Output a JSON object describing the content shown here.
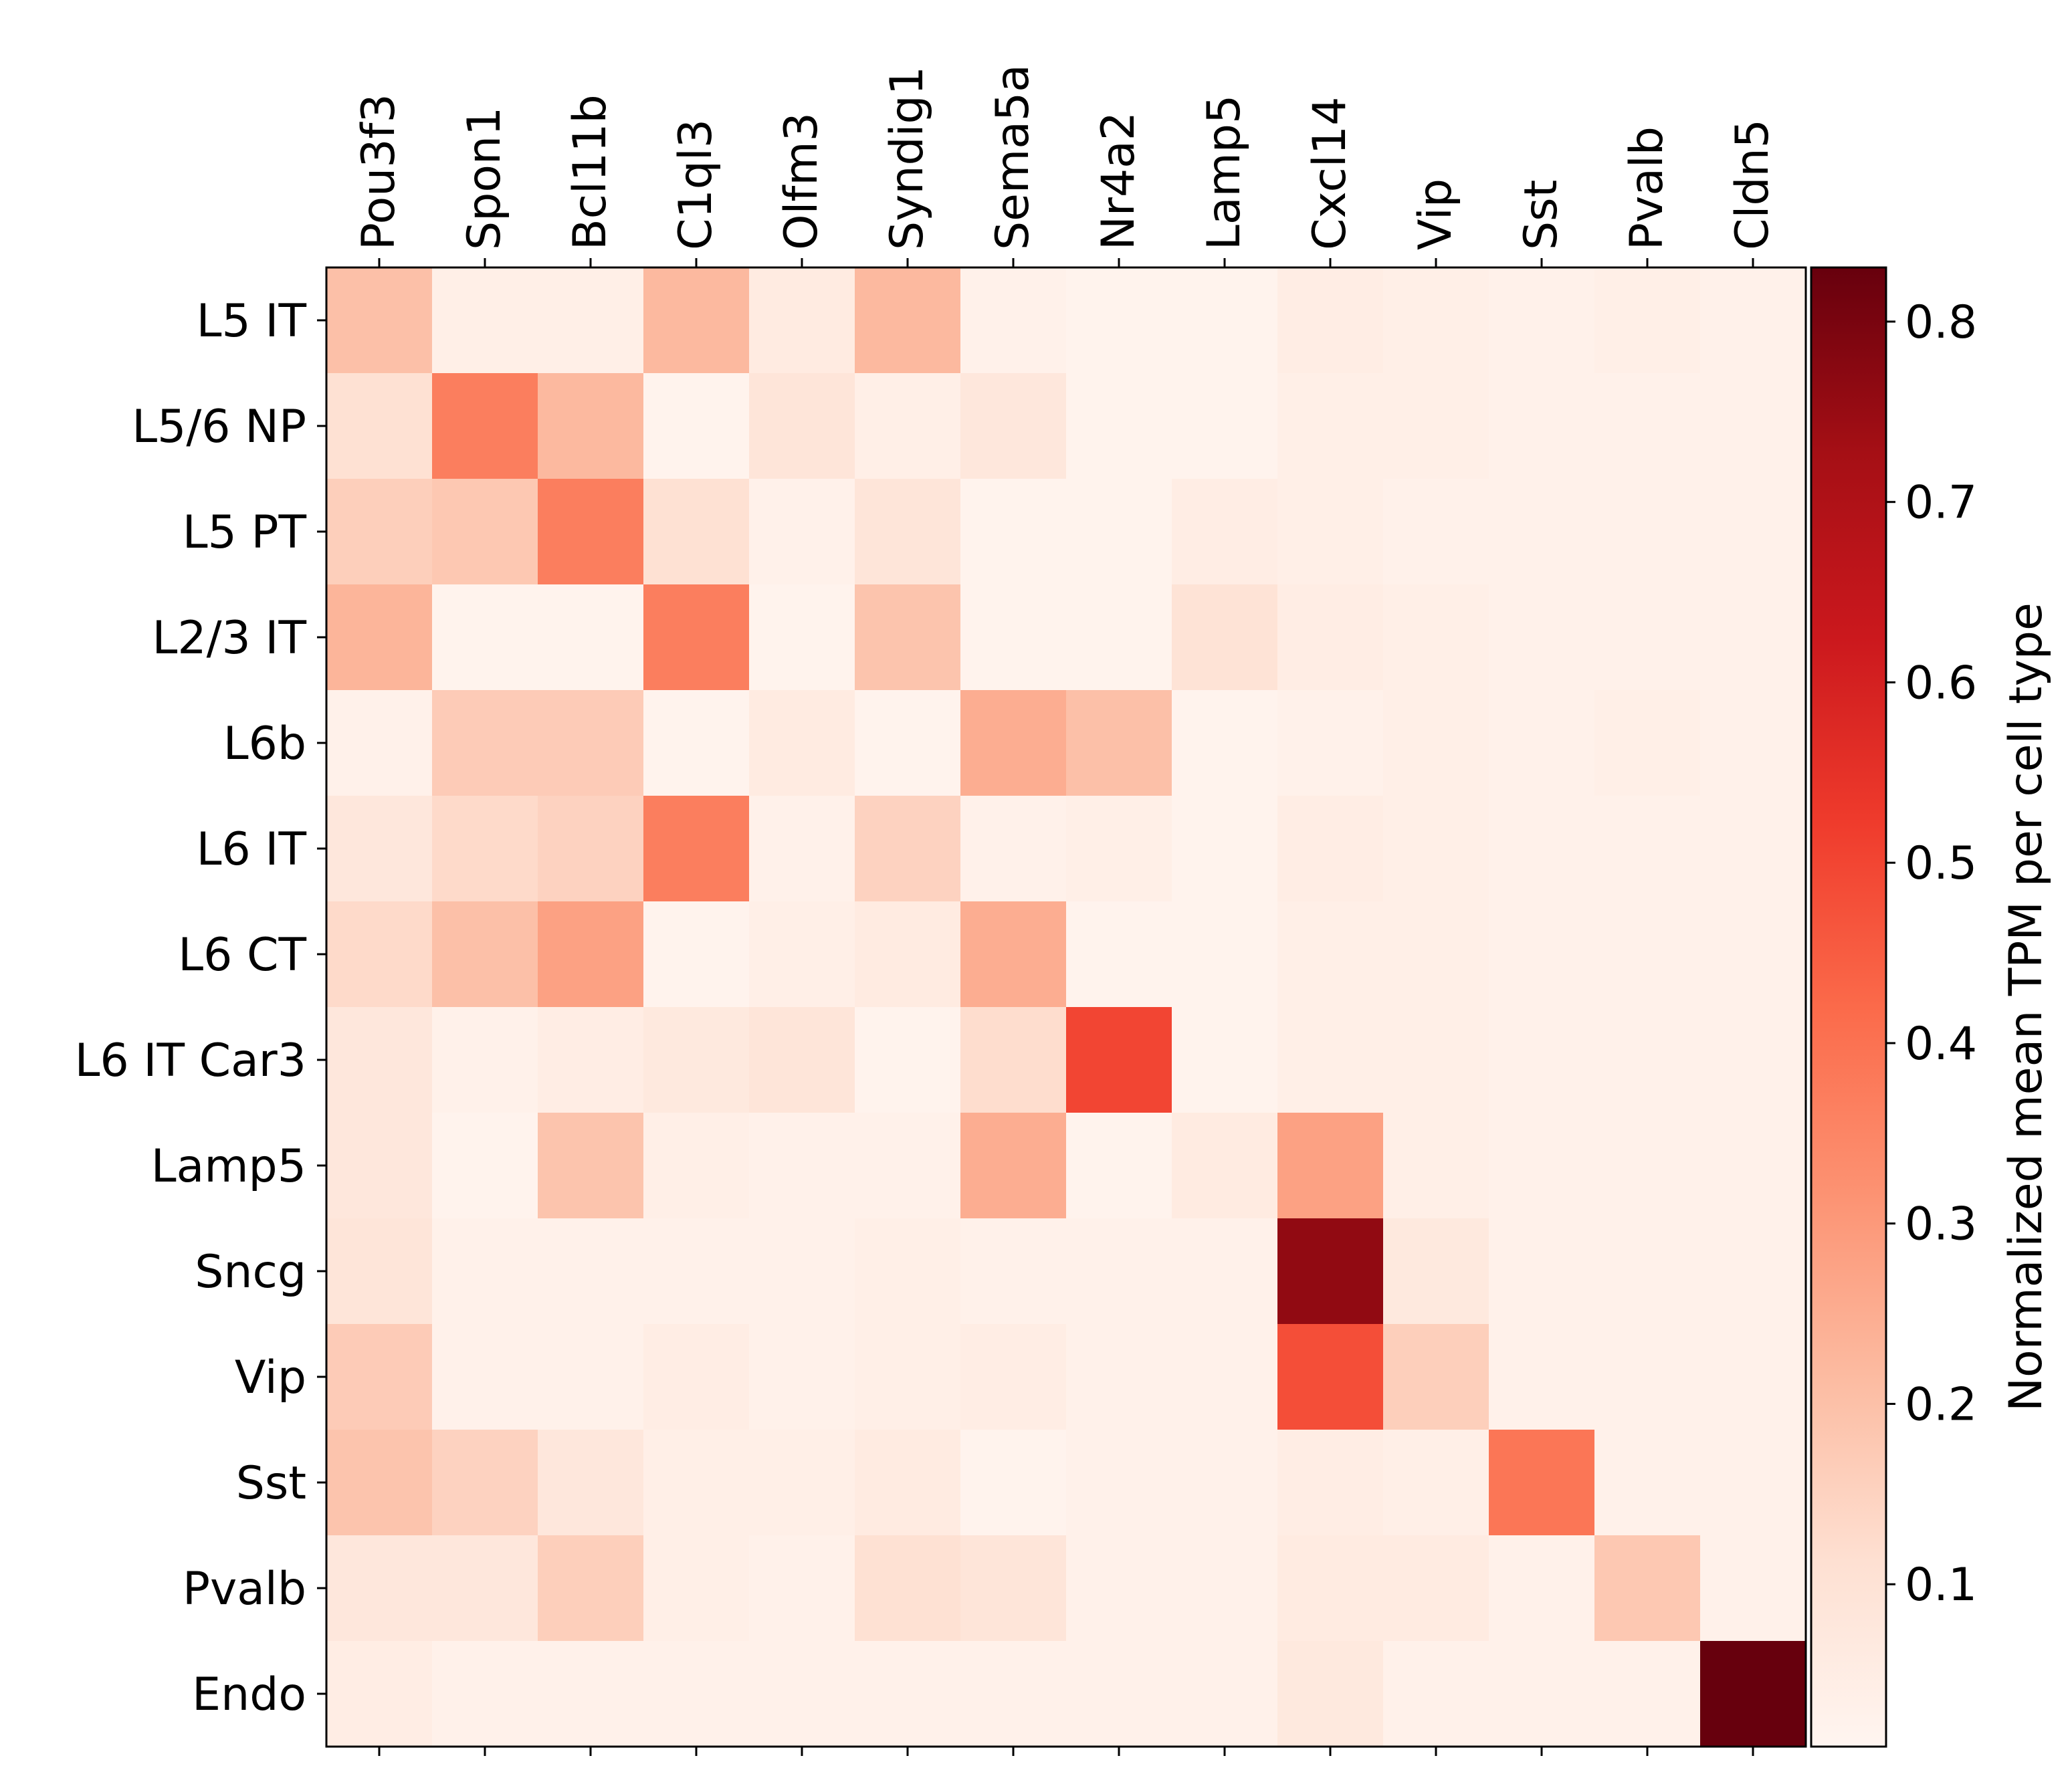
{
  "chart_data": {
    "type": "heatmap",
    "title": "",
    "xlabel": "",
    "ylabel": "",
    "x_axis_position": "top",
    "genes": [
      "Pou3f3",
      "Spon1",
      "Bcl11b",
      "C1ql3",
      "Olfm3",
      "Syndig1",
      "Sema5a",
      "Nr4a2",
      "Lamp5",
      "Cxcl14",
      "Vip",
      "Sst",
      "Pvalb",
      "Cldn5"
    ],
    "cell_types": [
      "L5 IT",
      "L5/6 NP",
      "L5 PT",
      "L2/3 IT",
      "L6b",
      "L6 IT",
      "L6 CT",
      "L6 IT Car3",
      "Lamp5",
      "Sncg",
      "Vip",
      "Sst",
      "Pvalb",
      "Endo"
    ],
    "values": [
      [
        0.2,
        0.04,
        0.04,
        0.22,
        0.06,
        0.22,
        0.03,
        0.02,
        0.02,
        0.05,
        0.04,
        0.03,
        0.04,
        0.03
      ],
      [
        0.11,
        0.37,
        0.22,
        0.02,
        0.09,
        0.04,
        0.08,
        0.02,
        0.02,
        0.04,
        0.04,
        0.03,
        0.03,
        0.03
      ],
      [
        0.16,
        0.18,
        0.37,
        0.11,
        0.03,
        0.09,
        0.02,
        0.02,
        0.05,
        0.04,
        0.03,
        0.03,
        0.03,
        0.03
      ],
      [
        0.23,
        0.02,
        0.02,
        0.37,
        0.02,
        0.19,
        0.02,
        0.02,
        0.1,
        0.05,
        0.04,
        0.03,
        0.03,
        0.03
      ],
      [
        0.03,
        0.17,
        0.17,
        0.02,
        0.06,
        0.02,
        0.25,
        0.2,
        0.02,
        0.03,
        0.04,
        0.03,
        0.04,
        0.03
      ],
      [
        0.08,
        0.13,
        0.15,
        0.37,
        0.03,
        0.15,
        0.03,
        0.04,
        0.02,
        0.05,
        0.04,
        0.03,
        0.03,
        0.03
      ],
      [
        0.13,
        0.2,
        0.28,
        0.02,
        0.04,
        0.06,
        0.25,
        0.02,
        0.02,
        0.04,
        0.04,
        0.03,
        0.03,
        0.03
      ],
      [
        0.08,
        0.03,
        0.05,
        0.07,
        0.09,
        0.02,
        0.12,
        0.5,
        0.02,
        0.04,
        0.04,
        0.03,
        0.03,
        0.03
      ],
      [
        0.08,
        0.02,
        0.19,
        0.04,
        0.03,
        0.03,
        0.25,
        0.02,
        0.06,
        0.28,
        0.04,
        0.03,
        0.03,
        0.03
      ],
      [
        0.09,
        0.03,
        0.03,
        0.03,
        0.03,
        0.04,
        0.03,
        0.03,
        0.03,
        0.76,
        0.07,
        0.03,
        0.03,
        0.03
      ],
      [
        0.17,
        0.03,
        0.03,
        0.05,
        0.03,
        0.04,
        0.05,
        0.03,
        0.03,
        0.48,
        0.16,
        0.03,
        0.03,
        0.03
      ],
      [
        0.19,
        0.15,
        0.08,
        0.04,
        0.04,
        0.06,
        0.02,
        0.03,
        0.03,
        0.05,
        0.04,
        0.39,
        0.03,
        0.03
      ],
      [
        0.08,
        0.08,
        0.16,
        0.04,
        0.03,
        0.11,
        0.09,
        0.03,
        0.03,
        0.06,
        0.06,
        0.03,
        0.18,
        0.03
      ],
      [
        0.05,
        0.03,
        0.03,
        0.03,
        0.03,
        0.03,
        0.03,
        0.03,
        0.03,
        0.07,
        0.03,
        0.03,
        0.03,
        0.84
      ]
    ],
    "colormap": "Reds",
    "colormap_stops": [
      "#fff5f0",
      "#fee0d2",
      "#fcbba1",
      "#fc9272",
      "#fb6a4a",
      "#ef3b2c",
      "#cb181d",
      "#a50f15",
      "#67000d"
    ],
    "colorbar": {
      "label": "Normalized mean TPM per cell type",
      "range": [
        0.01,
        0.83
      ],
      "ticks": [
        0.1,
        0.2,
        0.3,
        0.4,
        0.5,
        0.6,
        0.7,
        0.8
      ],
      "tick_labels": [
        "0.1",
        "0.2",
        "0.3",
        "0.4",
        "0.5",
        "0.6",
        "0.7",
        "0.8"
      ]
    },
    "grid": false,
    "legend": "colorbar-right"
  }
}
